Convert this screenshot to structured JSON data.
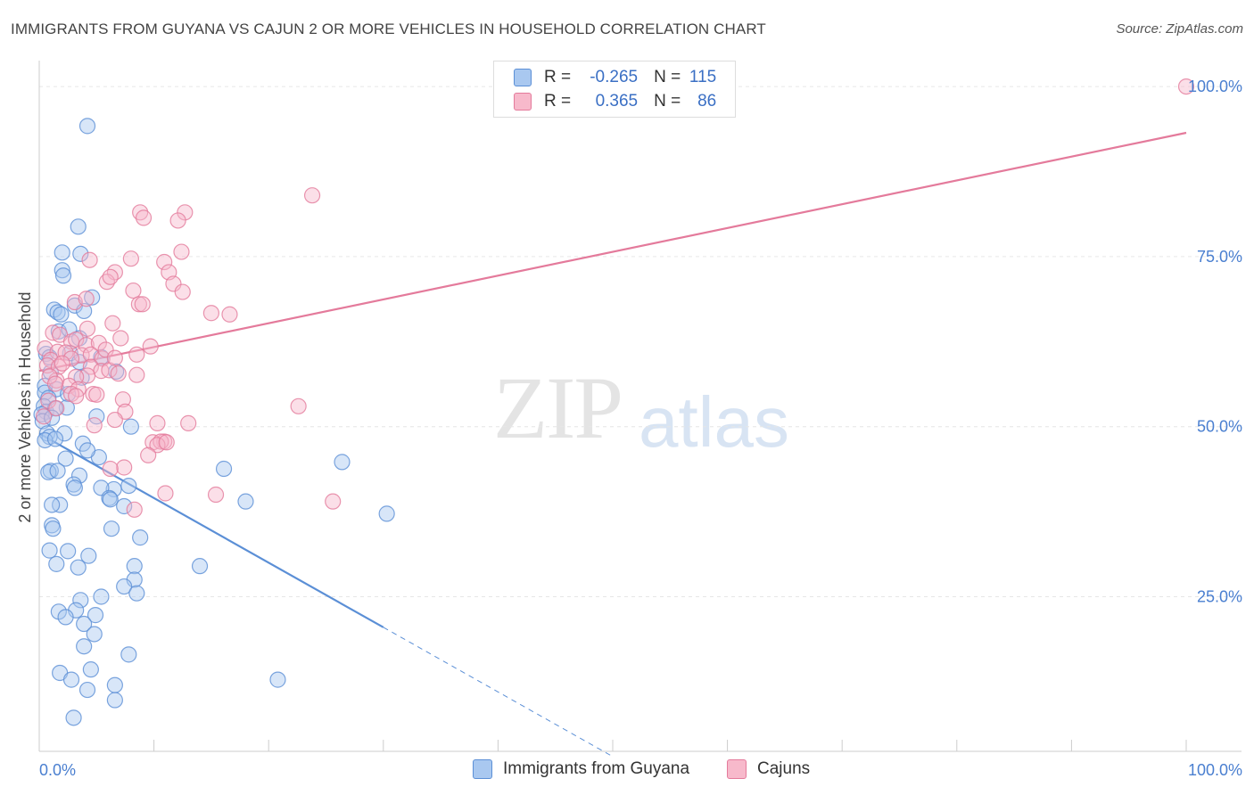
{
  "title": "IMMIGRANTS FROM GUYANA VS CAJUN 2 OR MORE VEHICLES IN HOUSEHOLD CORRELATION CHART",
  "source": "Source: ZipAtlas.com",
  "watermark": {
    "zip": "ZIP",
    "atlas": "atlas"
  },
  "legend": {
    "rows": [
      {
        "r_label": "R = ",
        "r_value": "-0.265",
        "n_label": "N = ",
        "n_value": "115",
        "color": "#a9c8f0",
        "border": "#5b8fd6"
      },
      {
        "r_label": "R = ",
        "r_value": "0.365",
        "n_label": "N = ",
        "n_value": "86",
        "color": "#f7b9cb",
        "border": "#e47a9b"
      }
    ]
  },
  "chart_data": {
    "type": "scatter",
    "title": "IMMIGRANTS FROM GUYANA VS CAJUN 2 OR MORE VEHICLES IN HOUSEHOLD CORRELATION CHART",
    "xlabel": "",
    "ylabel": "2 or more Vehicles in Household",
    "xlim": [
      0,
      100
    ],
    "ylim": [
      0,
      100
    ],
    "x_tick_labels": [
      {
        "value": 0,
        "label": "0.0%"
      },
      {
        "value": 100,
        "label": "100.0%"
      }
    ],
    "y_tick_labels": [
      {
        "value": 25,
        "label": "25.0%"
      },
      {
        "value": 50,
        "label": "50.0%"
      },
      {
        "value": 75,
        "label": "75.0%"
      },
      {
        "value": 100,
        "label": "100.0%"
      }
    ],
    "legend_placement": "bottom",
    "grid": true,
    "series": [
      {
        "name": "Immigrants from Guyana",
        "color": "#5b8fd6",
        "fill": "#a9c8f0",
        "trend": {
          "x0": 0,
          "y0": 49,
          "x1": 30,
          "y1": 20.5,
          "dash_to_x": 50,
          "dash_to_y": 1.5
        },
        "points": [
          [
            4.2,
            94.2
          ],
          [
            3.4,
            79.4
          ],
          [
            2.0,
            75.6
          ],
          [
            3.6,
            75.4
          ],
          [
            2.0,
            73.0
          ],
          [
            2.1,
            72.2
          ],
          [
            4.6,
            69.0
          ],
          [
            1.3,
            67.2
          ],
          [
            1.6,
            66.8
          ],
          [
            3.1,
            67.8
          ],
          [
            3.9,
            67.0
          ],
          [
            1.9,
            66.5
          ],
          [
            1.7,
            64.0
          ],
          [
            2.6,
            64.3
          ],
          [
            3.5,
            63.0
          ],
          [
            2.7,
            60.8
          ],
          [
            0.6,
            60.7
          ],
          [
            0.9,
            60.2
          ],
          [
            5.4,
            60.2
          ],
          [
            3.5,
            59.5
          ],
          [
            1.0,
            58.0
          ],
          [
            3.7,
            57.2
          ],
          [
            6.7,
            58.1
          ],
          [
            0.5,
            56.0
          ],
          [
            1.5,
            55.5
          ],
          [
            0.5,
            55.0
          ],
          [
            2.5,
            54.8
          ],
          [
            0.8,
            54.2
          ],
          [
            0.4,
            53.0
          ],
          [
            0.6,
            52.2
          ],
          [
            0.2,
            51.8
          ],
          [
            2.4,
            52.8
          ],
          [
            1.4,
            52.7
          ],
          [
            5.0,
            51.5
          ],
          [
            0.3,
            50.8
          ],
          [
            1.1,
            51.3
          ],
          [
            8.0,
            50.0
          ],
          [
            0.7,
            49.0
          ],
          [
            0.9,
            48.5
          ],
          [
            2.2,
            49.0
          ],
          [
            0.5,
            48.0
          ],
          [
            1.4,
            48.2
          ],
          [
            3.8,
            47.5
          ],
          [
            5.2,
            45.5
          ],
          [
            2.3,
            45.3
          ],
          [
            4.2,
            46.5
          ],
          [
            6.5,
            40.8
          ],
          [
            1.0,
            43.5
          ],
          [
            0.8,
            43.3
          ],
          [
            1.6,
            43.5
          ],
          [
            3.5,
            42.8
          ],
          [
            16.1,
            43.8
          ],
          [
            26.4,
            44.8
          ],
          [
            3.0,
            41.5
          ],
          [
            5.4,
            41.0
          ],
          [
            7.8,
            41.3
          ],
          [
            3.1,
            41.0
          ],
          [
            6.1,
            39.5
          ],
          [
            6.2,
            39.3
          ],
          [
            1.8,
            38.5
          ],
          [
            1.1,
            38.5
          ],
          [
            7.4,
            38.3
          ],
          [
            18.0,
            39.0
          ],
          [
            30.3,
            37.2
          ],
          [
            6.3,
            35.0
          ],
          [
            1.1,
            35.5
          ],
          [
            1.2,
            35.0
          ],
          [
            8.8,
            33.7
          ],
          [
            0.9,
            31.8
          ],
          [
            2.5,
            31.7
          ],
          [
            4.3,
            31.0
          ],
          [
            14.0,
            29.5
          ],
          [
            1.5,
            29.8
          ],
          [
            8.3,
            29.5
          ],
          [
            3.4,
            29.3
          ],
          [
            8.3,
            27.5
          ],
          [
            7.4,
            26.5
          ],
          [
            8.5,
            25.5
          ],
          [
            5.4,
            25.0
          ],
          [
            3.6,
            24.5
          ],
          [
            1.7,
            22.8
          ],
          [
            3.2,
            23.0
          ],
          [
            4.9,
            22.3
          ],
          [
            2.3,
            22.0
          ],
          [
            3.9,
            21.0
          ],
          [
            4.8,
            19.5
          ],
          [
            3.9,
            17.7
          ],
          [
            7.8,
            16.5
          ],
          [
            1.8,
            13.8
          ],
          [
            4.5,
            14.3
          ],
          [
            2.8,
            12.8
          ],
          [
            6.6,
            12.0
          ],
          [
            4.2,
            11.3
          ],
          [
            20.8,
            12.8
          ],
          [
            6.6,
            9.8
          ],
          [
            3.0,
            7.2
          ]
        ]
      },
      {
        "name": "Cajuns",
        "color": "#e47a9b",
        "fill": "#f7b9cb",
        "trend": {
          "x0": 0,
          "y0": 58.2,
          "x1": 100,
          "y1": 93.2
        },
        "points": [
          [
            100,
            100
          ],
          [
            23.8,
            84.0
          ],
          [
            8.8,
            81.5
          ],
          [
            12.7,
            81.5
          ],
          [
            9.1,
            80.7
          ],
          [
            12.1,
            80.3
          ],
          [
            12.4,
            75.7
          ],
          [
            4.4,
            74.5
          ],
          [
            8.0,
            74.7
          ],
          [
            10.9,
            74.2
          ],
          [
            6.6,
            72.7
          ],
          [
            11.3,
            72.7
          ],
          [
            11.7,
            71.0
          ],
          [
            5.9,
            71.3
          ],
          [
            6.2,
            72.0
          ],
          [
            12.5,
            69.8
          ],
          [
            8.2,
            70.0
          ],
          [
            3.1,
            68.3
          ],
          [
            4.1,
            68.8
          ],
          [
            8.7,
            68.0
          ],
          [
            9.0,
            68.0
          ],
          [
            15.0,
            66.7
          ],
          [
            16.6,
            66.5
          ],
          [
            6.4,
            65.2
          ],
          [
            7.1,
            63.0
          ],
          [
            4.2,
            64.4
          ],
          [
            1.2,
            63.8
          ],
          [
            1.8,
            63.5
          ],
          [
            2.8,
            62.5
          ],
          [
            3.2,
            62.8
          ],
          [
            4.1,
            62.0
          ],
          [
            5.2,
            62.3
          ],
          [
            9.7,
            61.8
          ],
          [
            0.5,
            61.5
          ],
          [
            1.6,
            61.0
          ],
          [
            2.3,
            60.9
          ],
          [
            3.7,
            60.5
          ],
          [
            4.5,
            60.6
          ],
          [
            8.5,
            60.6
          ],
          [
            5.5,
            60.0
          ],
          [
            2.8,
            60.0
          ],
          [
            1.0,
            59.8
          ],
          [
            0.7,
            59.0
          ],
          [
            1.7,
            58.8
          ],
          [
            4.5,
            58.8
          ],
          [
            5.4,
            58.2
          ],
          [
            6.1,
            58.3
          ],
          [
            4.2,
            57.5
          ],
          [
            8.5,
            57.6
          ],
          [
            6.9,
            57.8
          ],
          [
            3.2,
            57.3
          ],
          [
            1.5,
            56.8
          ],
          [
            2.6,
            56.0
          ],
          [
            3.4,
            55.5
          ],
          [
            2.8,
            54.8
          ],
          [
            4.7,
            54.8
          ],
          [
            5.0,
            54.7
          ],
          [
            7.3,
            54.0
          ],
          [
            0.8,
            53.8
          ],
          [
            22.6,
            53.0
          ],
          [
            1.5,
            52.7
          ],
          [
            7.5,
            52.2
          ],
          [
            0.4,
            51.5
          ],
          [
            6.6,
            51.0
          ],
          [
            10.3,
            50.5
          ],
          [
            13.0,
            50.5
          ],
          [
            4.8,
            50.2
          ],
          [
            10.9,
            47.8
          ],
          [
            9.9,
            47.7
          ],
          [
            10.6,
            47.8
          ],
          [
            10.3,
            47.3
          ],
          [
            11.1,
            47.7
          ],
          [
            9.5,
            45.8
          ],
          [
            7.4,
            44.0
          ],
          [
            6.2,
            43.8
          ],
          [
            15.4,
            40.0
          ],
          [
            11.0,
            40.2
          ],
          [
            25.6,
            39.0
          ],
          [
            8.3,
            37.8
          ],
          [
            3.2,
            54.5
          ],
          [
            0.9,
            57.4
          ],
          [
            2.0,
            59.3
          ],
          [
            5.8,
            61.3
          ],
          [
            6.6,
            60.1
          ],
          [
            1.4,
            56.3
          ]
        ]
      }
    ]
  },
  "bottom_legend": [
    {
      "label": "Immigrants from Guyana",
      "fill": "#a9c8f0",
      "border": "#5b8fd6"
    },
    {
      "label": "Cajuns",
      "fill": "#f7b9cb",
      "border": "#e47a9b"
    }
  ]
}
